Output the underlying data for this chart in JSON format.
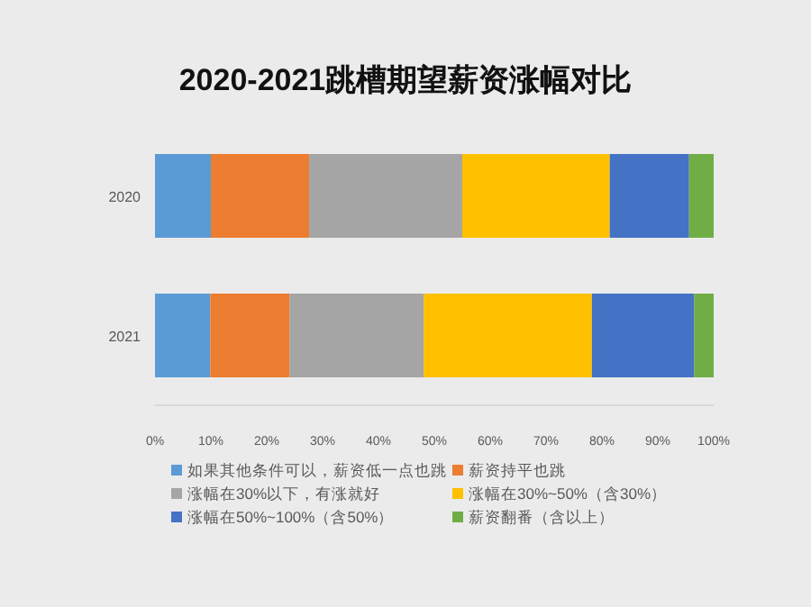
{
  "chart_data": {
    "type": "bar",
    "orientation": "horizontal",
    "stacked": true,
    "title": "2020-2021跳槽期望薪资涨幅对比",
    "categories": [
      "2020",
      "2021"
    ],
    "series": [
      {
        "name": "如果其他条件可以，薪资低一点也跳",
        "color": "#5b9bd5",
        "values": [
          10,
          9.9
        ]
      },
      {
        "name": "薪资持平也跳",
        "color": "#ed7d31",
        "values": [
          17.6,
          14.2
        ]
      },
      {
        "name": "涨幅在30%以下，有涨就好",
        "color": "#a5a5a5",
        "values": [
          27.4,
          24
        ]
      },
      {
        "name": "涨幅在30%~50%（含30%）",
        "color": "#ffc000",
        "values": [
          26.4,
          30.1
        ]
      },
      {
        "name": "涨幅在50%~100%（含50%）",
        "color": "#4472c4",
        "values": [
          14.2,
          18.3
        ]
      },
      {
        "name": "薪资翻番（含以上）",
        "color": "#70ad47",
        "values": [
          4.4,
          3.5
        ]
      }
    ],
    "xlim": [
      0,
      100
    ],
    "xticks": [
      {
        "value": 0,
        "label": "0%"
      },
      {
        "value": 10,
        "label": "10%"
      },
      {
        "value": 20,
        "label": "20%"
      },
      {
        "value": 30,
        "label": "30%"
      },
      {
        "value": 40,
        "label": "40%"
      },
      {
        "value": 50,
        "label": "50%"
      },
      {
        "value": 60,
        "label": "60%"
      },
      {
        "value": 70,
        "label": "70%"
      },
      {
        "value": 80,
        "label": "80%"
      },
      {
        "value": 90,
        "label": "90%"
      },
      {
        "value": 100,
        "label": "100%"
      }
    ],
    "legend": "bottom",
    "grid": false
  }
}
